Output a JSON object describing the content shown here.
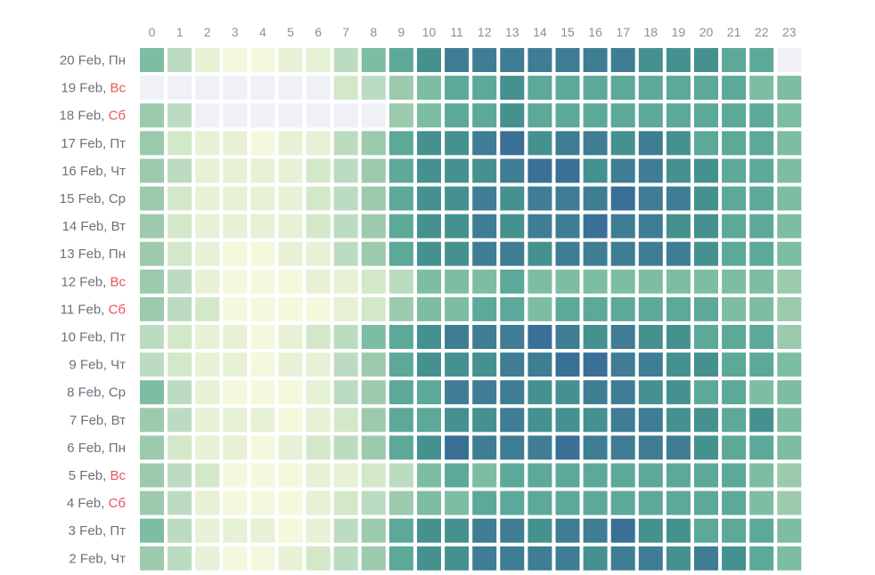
{
  "chart_data": {
    "type": "heatmap",
    "title": "",
    "xlabel": "",
    "ylabel": "",
    "x": [
      "0",
      "1",
      "2",
      "3",
      "4",
      "5",
      "6",
      "7",
      "8",
      "9",
      "10",
      "11",
      "12",
      "13",
      "14",
      "15",
      "16",
      "17",
      "18",
      "19",
      "20",
      "21",
      "22",
      "23"
    ],
    "rows": [
      {
        "date": "20 Feb,",
        "day": "Пн",
        "weekend": false
      },
      {
        "date": "19 Feb,",
        "day": "Вс",
        "weekend": true
      },
      {
        "date": "18 Feb,",
        "day": "Сб",
        "weekend": true
      },
      {
        "date": "17 Feb,",
        "day": "Пт",
        "weekend": false
      },
      {
        "date": "16 Feb,",
        "day": "Чт",
        "weekend": false
      },
      {
        "date": "15 Feb,",
        "day": "Ср",
        "weekend": false
      },
      {
        "date": "14 Feb,",
        "day": "Вт",
        "weekend": false
      },
      {
        "date": "13 Feb,",
        "day": "Пн",
        "weekend": false
      },
      {
        "date": "12 Feb,",
        "day": "Вс",
        "weekend": true
      },
      {
        "date": "11 Feb,",
        "day": "Сб",
        "weekend": true
      },
      {
        "date": "10 Feb,",
        "day": "Пт",
        "weekend": false
      },
      {
        "date": "9 Feb,",
        "day": "Чт",
        "weekend": false
      },
      {
        "date": "8 Feb,",
        "day": "Ср",
        "weekend": false
      },
      {
        "date": "7 Feb,",
        "day": "Вт",
        "weekend": false
      },
      {
        "date": "6 Feb,",
        "day": "Пн",
        "weekend": false
      },
      {
        "date": "5 Feb,",
        "day": "Вс",
        "weekend": true
      },
      {
        "date": "4 Feb,",
        "day": "Сб",
        "weekend": true
      },
      {
        "date": "3 Feb,",
        "day": "Пт",
        "weekend": false
      },
      {
        "date": "2 Feb,",
        "day": "Чт",
        "weekend": false
      }
    ],
    "values": [
      [
        5,
        3,
        1,
        0,
        0,
        1,
        1,
        3,
        5,
        6,
        7,
        8,
        8,
        8,
        8,
        8,
        8,
        8,
        7,
        7,
        7,
        6,
        6,
        null
      ],
      [
        null,
        null,
        null,
        null,
        null,
        null,
        null,
        2,
        3,
        4,
        5,
        6,
        6,
        7,
        6,
        6,
        6,
        6,
        6,
        6,
        6,
        6,
        5,
        5
      ],
      [
        4,
        3,
        null,
        null,
        null,
        null,
        null,
        null,
        null,
        4,
        5,
        6,
        6,
        7,
        6,
        6,
        6,
        6,
        6,
        6,
        6,
        6,
        6,
        5
      ],
      [
        4,
        2,
        1,
        1,
        0,
        1,
        1,
        3,
        4,
        6,
        7,
        7,
        8,
        9,
        7,
        8,
        8,
        7,
        8,
        7,
        6,
        6,
        6,
        5
      ],
      [
        4,
        3,
        1,
        1,
        1,
        1,
        2,
        3,
        4,
        6,
        7,
        7,
        7,
        8,
        9,
        9,
        7,
        8,
        8,
        7,
        7,
        6,
        6,
        5
      ],
      [
        4,
        2,
        1,
        1,
        1,
        1,
        2,
        3,
        4,
        6,
        7,
        7,
        8,
        7,
        8,
        8,
        8,
        9,
        8,
        8,
        7,
        6,
        6,
        5
      ],
      [
        4,
        2,
        1,
        1,
        1,
        1,
        2,
        3,
        4,
        6,
        7,
        7,
        8,
        7,
        8,
        8,
        9,
        8,
        8,
        7,
        7,
        6,
        6,
        5
      ],
      [
        4,
        2,
        1,
        0,
        0,
        1,
        1,
        3,
        4,
        6,
        7,
        7,
        8,
        8,
        7,
        8,
        8,
        8,
        8,
        8,
        7,
        6,
        6,
        5
      ],
      [
        4,
        3,
        1,
        0,
        0,
        0,
        1,
        1,
        2,
        3,
        5,
        5,
        5,
        6,
        5,
        5,
        5,
        5,
        5,
        5,
        5,
        5,
        5,
        4
      ],
      [
        4,
        3,
        2,
        0,
        0,
        0,
        0,
        1,
        2,
        4,
        5,
        5,
        6,
        6,
        5,
        6,
        6,
        6,
        6,
        6,
        6,
        5,
        5,
        4
      ],
      [
        3,
        2,
        1,
        1,
        0,
        1,
        2,
        3,
        5,
        6,
        7,
        8,
        8,
        8,
        9,
        8,
        7,
        8,
        7,
        7,
        6,
        6,
        6,
        4
      ],
      [
        3,
        2,
        1,
        1,
        0,
        1,
        1,
        3,
        4,
        6,
        7,
        7,
        7,
        8,
        8,
        9,
        9,
        8,
        8,
        7,
        7,
        6,
        6,
        5
      ],
      [
        5,
        3,
        1,
        0,
        0,
        0,
        1,
        3,
        4,
        6,
        6,
        8,
        8,
        8,
        7,
        7,
        8,
        8,
        7,
        7,
        6,
        6,
        5,
        5
      ],
      [
        4,
        3,
        1,
        1,
        1,
        0,
        1,
        2,
        4,
        6,
        6,
        7,
        7,
        8,
        7,
        7,
        7,
        8,
        8,
        7,
        7,
        6,
        7,
        5
      ],
      [
        4,
        2,
        1,
        1,
        0,
        1,
        2,
        3,
        4,
        6,
        7,
        9,
        8,
        8,
        8,
        9,
        8,
        8,
        8,
        8,
        7,
        6,
        6,
        5
      ],
      [
        4,
        3,
        2,
        0,
        0,
        0,
        1,
        1,
        2,
        3,
        5,
        6,
        5,
        6,
        6,
        6,
        6,
        6,
        6,
        6,
        6,
        6,
        5,
        4
      ],
      [
        4,
        3,
        1,
        0,
        0,
        0,
        1,
        2,
        3,
        4,
        5,
        5,
        6,
        6,
        6,
        6,
        6,
        6,
        6,
        6,
        6,
        6,
        5,
        4
      ],
      [
        5,
        3,
        1,
        1,
        1,
        0,
        1,
        3,
        4,
        6,
        7,
        7,
        8,
        8,
        7,
        8,
        8,
        9,
        7,
        7,
        6,
        6,
        6,
        5
      ],
      [
        4,
        3,
        1,
        0,
        0,
        1,
        2,
        3,
        4,
        6,
        7,
        7,
        8,
        8,
        8,
        8,
        7,
        8,
        8,
        7,
        8,
        7,
        6,
        5
      ]
    ],
    "scale_min": 0,
    "scale_max": 9,
    "colors": [
      "#f4f8dd",
      "#e6f1d5",
      "#d3e8c9",
      "#bcdcc1",
      "#9ccaad",
      "#7dbda2",
      "#5ca899",
      "#45918f",
      "#3e7d93",
      "#3a6f96"
    ],
    "empty_color": "#eff1f6",
    "label_color": "#6b717c",
    "weekend_color": "#e8555a",
    "grid": false,
    "legend": "none"
  }
}
